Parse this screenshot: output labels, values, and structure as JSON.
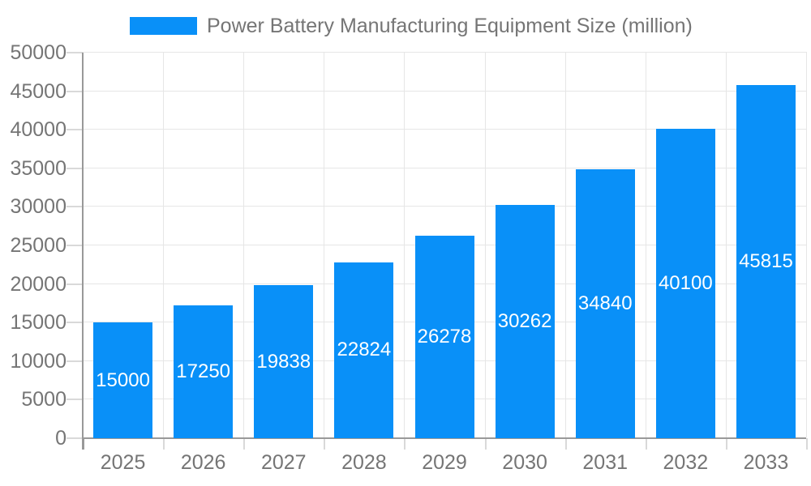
{
  "legend": {
    "label": "Power Battery Manufacturing Equipment Size (million)"
  },
  "chart_data": {
    "type": "bar",
    "title": "Power Battery Manufacturing Equipment Size (million)",
    "categories": [
      "2025",
      "2026",
      "2027",
      "2028",
      "2029",
      "2030",
      "2031",
      "2032",
      "2033"
    ],
    "values": [
      15000,
      17250,
      19838,
      22824,
      26278,
      30262,
      34840,
      40100,
      45815
    ],
    "xlabel": "",
    "ylabel": "",
    "ylim": [
      0,
      50000
    ],
    "ytick_step": 5000,
    "grid": true,
    "legend_position": "top",
    "colors": {
      "bar": "#0990F8",
      "bar_label": "#FFFFFF",
      "axis_line": "#999999",
      "grid_line": "#E6E6E6",
      "tick_mark": "#D9D9D9",
      "tick_text": "#757575"
    }
  }
}
